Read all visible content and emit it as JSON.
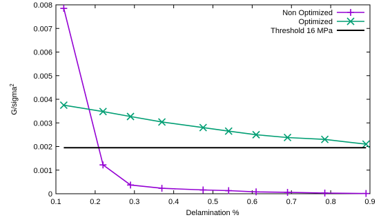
{
  "chart_data": {
    "type": "line",
    "xlabel": "Delamination %",
    "ylabel": "G/sigma",
    "ylabel_sup": "2",
    "xlim": [
      0.1,
      0.9
    ],
    "ylim": [
      0,
      0.008
    ],
    "xticks": [
      "0.1",
      "0.2",
      "0.3",
      "0.4",
      "0.5",
      "0.6",
      "0.7",
      "0.8",
      "0.9"
    ],
    "yticks": [
      "0",
      "0.001",
      "0.002",
      "0.003",
      "0.004",
      "0.005",
      "0.006",
      "0.007",
      "0.008"
    ],
    "grid": false,
    "legend_position": "top-right",
    "series": [
      {
        "name": "Non Optimized",
        "color": "#9400d3",
        "marker": "plus",
        "x": [
          0.12,
          0.22,
          0.29,
          0.37,
          0.475,
          0.54,
          0.61,
          0.69,
          0.785,
          0.89
        ],
        "y": [
          0.00785,
          0.00122,
          0.00037,
          0.00023,
          0.00016,
          0.00013,
          8e-05,
          6e-05,
          3e-05,
          1e-05
        ]
      },
      {
        "name": "Optimized",
        "color": "#009e73",
        "marker": "x",
        "x": [
          0.12,
          0.22,
          0.29,
          0.37,
          0.475,
          0.54,
          0.61,
          0.69,
          0.785,
          0.89
        ],
        "y": [
          0.00375,
          0.00348,
          0.00327,
          0.00304,
          0.0028,
          0.00265,
          0.0025,
          0.00238,
          0.0023,
          0.0021
        ]
      },
      {
        "name": "Threshold 16 MPa",
        "color": "#000000",
        "marker": "none",
        "x": [
          0.12,
          0.89
        ],
        "y": [
          0.00195,
          0.00195
        ]
      }
    ]
  }
}
